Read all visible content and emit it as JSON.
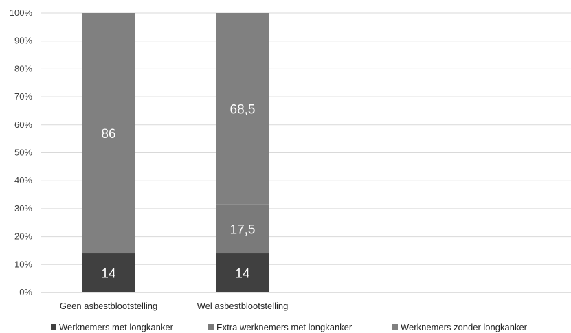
{
  "chart_data": {
    "type": "bar",
    "stacked": true,
    "categories": [
      "Geen asbestblootstelling",
      "Wel asbestblootstelling"
    ],
    "series": [
      {
        "name": "Werknemers met longkanker",
        "values": [
          14,
          14
        ],
        "labels": [
          "14",
          "14"
        ],
        "color": "#404040"
      },
      {
        "name": "Extra  werknemers met longkanker",
        "values": [
          0,
          17.5
        ],
        "labels": [
          "",
          "17,5"
        ],
        "color": "#7a7a7a"
      },
      {
        "name": "Werknemers zonder longkanker",
        "values": [
          86,
          68.5
        ],
        "labels": [
          "86",
          "68,5"
        ],
        "color": "#808080"
      }
    ],
    "y_ticks": [
      "0%",
      "10%",
      "20%",
      "30%",
      "40%",
      "50%",
      "60%",
      "70%",
      "80%",
      "90%",
      "100%"
    ],
    "ylim": [
      0,
      100
    ],
    "grid": true,
    "legend_position": "bottom"
  }
}
